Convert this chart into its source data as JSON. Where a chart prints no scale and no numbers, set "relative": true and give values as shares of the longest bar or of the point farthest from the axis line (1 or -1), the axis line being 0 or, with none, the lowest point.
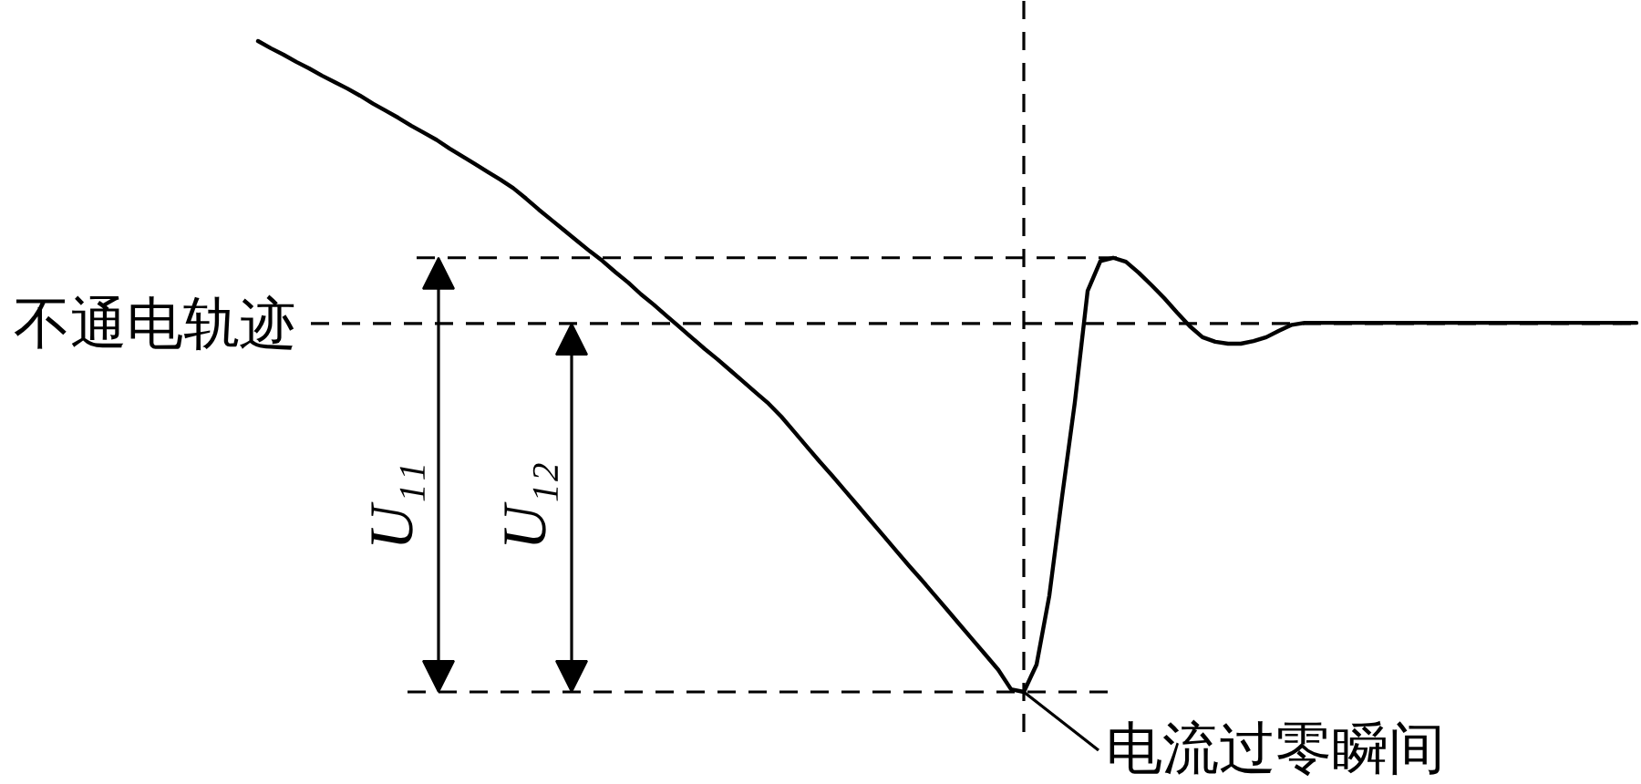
{
  "chart_data": {
    "type": "line",
    "relative": true,
    "categories": [
      null,
      null,
      null,
      null,
      null,
      null,
      null,
      null,
      null,
      null,
      null,
      null,
      null,
      null,
      null,
      null,
      null,
      null,
      null,
      null,
      null,
      null,
      null,
      null,
      null,
      null,
      null,
      null,
      null,
      null,
      null,
      null,
      null,
      null,
      null,
      null,
      null,
      null,
      null,
      null,
      null,
      null,
      null,
      null,
      null,
      null,
      null,
      null,
      null,
      null,
      null,
      null,
      null,
      null,
      null,
      null,
      null,
      null,
      null,
      null,
      null,
      null,
      null,
      null,
      null,
      null,
      null,
      null,
      null,
      null,
      null,
      null,
      null,
      null,
      null,
      null,
      null,
      null,
      null,
      null,
      null,
      null,
      null,
      null,
      null,
      null,
      null,
      null,
      null,
      null,
      null,
      null,
      null,
      null,
      null,
      null,
      null,
      null,
      null,
      null,
      null,
      null,
      null,
      null,
      null,
      null,
      null,
      null,
      null
    ],
    "series": [
      {
        "color": "#000000",
        "values": [
          1.0,
          0.989,
          0.979,
          0.968,
          0.958,
          0.947,
          0.937,
          0.927,
          0.916,
          0.904,
          0.893,
          0.882,
          0.87,
          0.859,
          0.848,
          0.835,
          0.823,
          0.811,
          0.799,
          0.787,
          0.774,
          0.758,
          0.741,
          0.725,
          0.709,
          0.693,
          0.677,
          0.662,
          0.645,
          0.629,
          0.611,
          0.595,
          0.578,
          0.561,
          0.544,
          0.527,
          0.511,
          0.494,
          0.477,
          0.46,
          0.443,
          0.423,
          0.4,
          0.377,
          0.354,
          0.332,
          0.309,
          0.286,
          0.263,
          0.24,
          0.217,
          0.194,
          0.172,
          0.149,
          0.126,
          0.103,
          0.08,
          0.057,
          0.034,
          0.004,
          0,
          0.042,
          0.148,
          0.3,
          0.445,
          0.616,
          0.662,
          0.667,
          0.661,
          0.644,
          0.625,
          0.605,
          0.583,
          0.562,
          0.545,
          0.538,
          0.535,
          0.535,
          0.539,
          0.545,
          0.555,
          0.564,
          0.567,
          0.567,
          0.567,
          0.567,
          0.567,
          0.567,
          0.567,
          0.567,
          0.567,
          0.567,
          0.567,
          0.567,
          0.567,
          0.567,
          0.567,
          0.567,
          0.567,
          0.567,
          0.567,
          0.567,
          0.567,
          0.567,
          0.567,
          0.567,
          0.567,
          0.567,
          0.567
        ]
      }
    ],
    "ref_lines": [
      {
        "axis": "y",
        "value": 0.667,
        "color": "#000000",
        "line_style": "dashed"
      },
      {
        "axis": "y",
        "value": 0.566,
        "label": "不通电轨迹",
        "color": "#000000",
        "line_style": "dashed"
      },
      {
        "axis": "y",
        "value": 0,
        "color": "#000000",
        "line_style": "dashed"
      }
    ],
    "annotations": [
      "U₁₁",
      "U₁₂",
      "电流过零瞬间"
    ]
  }
}
